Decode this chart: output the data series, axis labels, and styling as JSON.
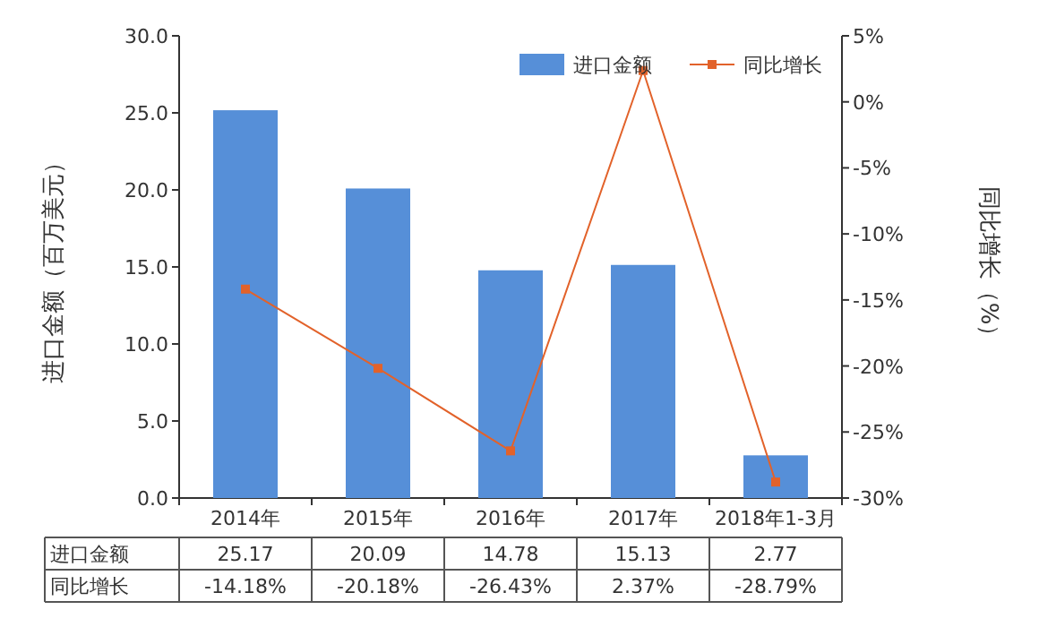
{
  "chart_data": {
    "type": "bar",
    "categories": [
      "2014年",
      "2015年",
      "2016年",
      "2017年",
      "2018年1-3月"
    ],
    "ylabel": "进口金额（百万美元）",
    "y2label": "同比增长（%）",
    "ylim": [
      0,
      30
    ],
    "yticks": [
      {
        "value": 0,
        "label": "0.0"
      },
      {
        "value": 5,
        "label": "5.0"
      },
      {
        "value": 10,
        "label": "10.0"
      },
      {
        "value": 15,
        "label": "15.0"
      },
      {
        "value": 20,
        "label": "20.0"
      },
      {
        "value": 25,
        "label": "25.0"
      },
      {
        "value": 30,
        "label": "30.0"
      }
    ],
    "y2lim": [
      -30,
      5
    ],
    "y2ticks": [
      {
        "value": -30,
        "label": "-30%"
      },
      {
        "value": -25,
        "label": "-25%"
      },
      {
        "value": -20,
        "label": "-20%"
      },
      {
        "value": -15,
        "label": "-15%"
      },
      {
        "value": -10,
        "label": "-10%"
      },
      {
        "value": -5,
        "label": "-5%"
      },
      {
        "value": 0,
        "label": "0%"
      },
      {
        "value": 5,
        "label": "5%"
      }
    ],
    "legend": "top right",
    "marker": "square",
    "series": [
      {
        "name": "进口金额",
        "color": "#568fd8",
        "values": [
          25.17,
          20.09,
          14.78,
          15.13,
          2.77
        ],
        "value_labels": [
          "25.17",
          "20.09",
          "14.78",
          "15.13",
          "2.77"
        ]
      },
      {
        "name": "同比增长",
        "type": "line",
        "axis": "y2",
        "color": "#e2622a",
        "values": [
          -14.18,
          -20.18,
          -26.43,
          2.37,
          -28.79
        ],
        "value_labels": [
          "-14.18%",
          "-20.18%",
          "-26.43%",
          "2.37%",
          "-28.79%"
        ]
      }
    ]
  }
}
